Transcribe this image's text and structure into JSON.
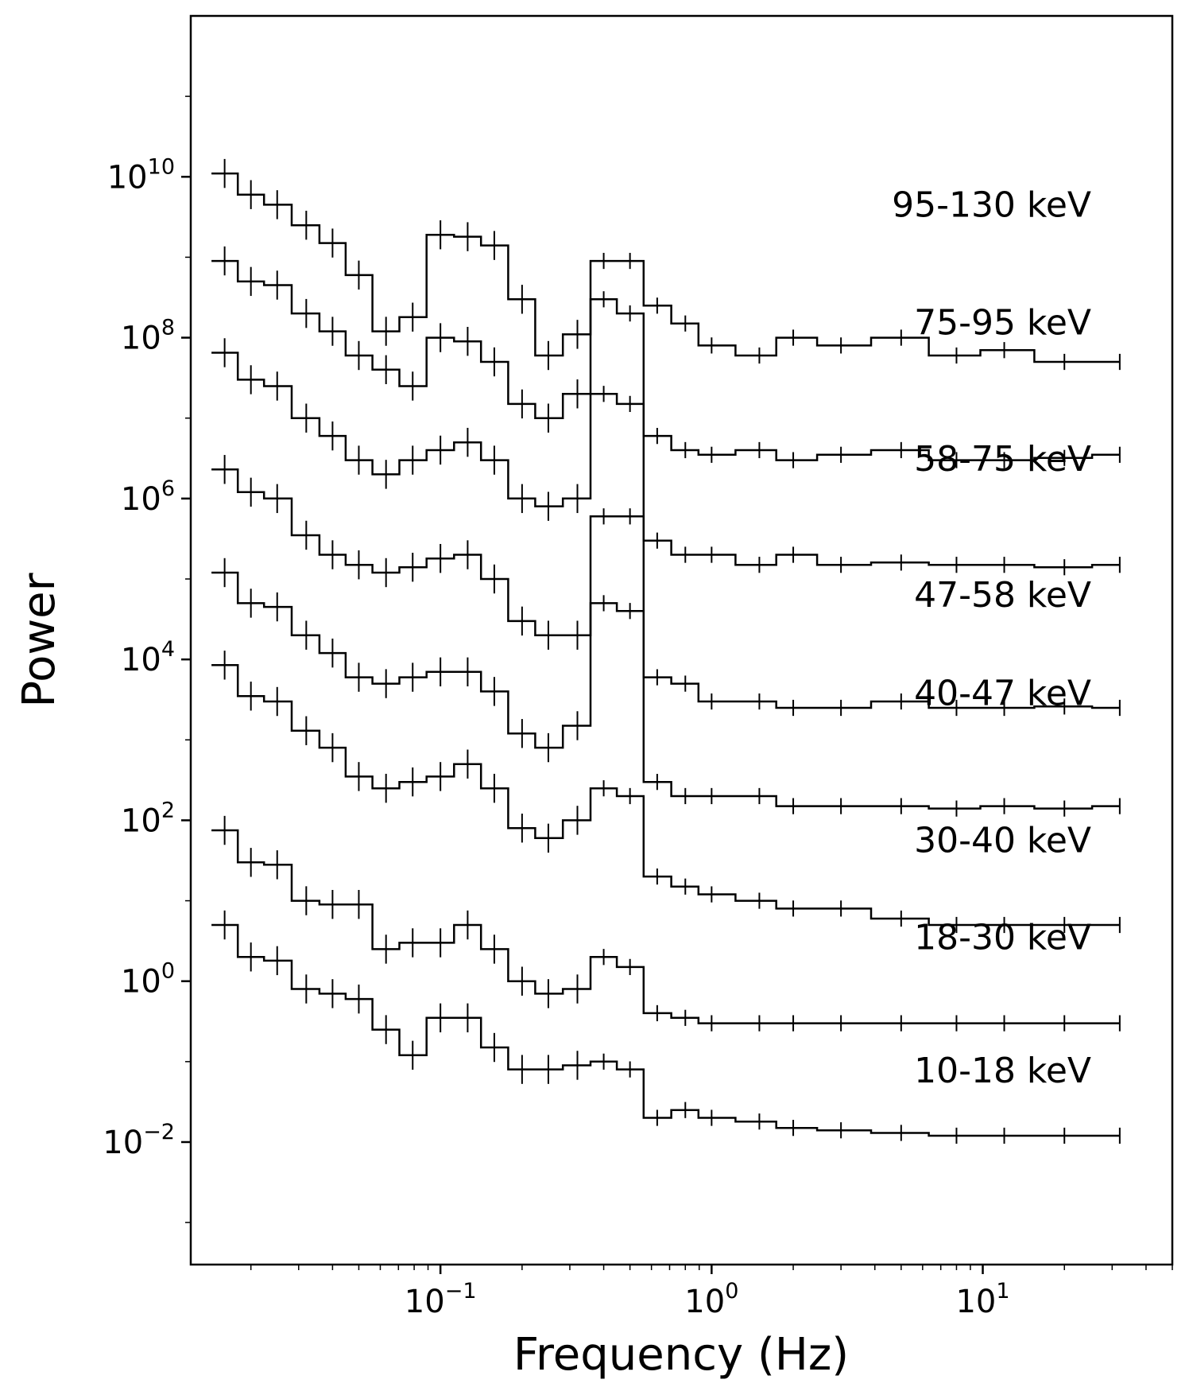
{
  "chart_data": {
    "type": "line",
    "title": "",
    "xlabel": "Frequency (Hz)",
    "ylabel": "Power",
    "xscale": "log",
    "yscale": "log",
    "xlim": [
      0.012,
      50
    ],
    "ylim": [
      0.0003,
      1000000000000.0
    ],
    "grid": false,
    "x_ticks": [
      {
        "value": 0.1,
        "base": "10",
        "exp": "−1"
      },
      {
        "value": 1,
        "base": "10",
        "exp": "0"
      },
      {
        "value": 10,
        "base": "10",
        "exp": "1"
      }
    ],
    "y_ticks": [
      {
        "value": 10000000000.0,
        "base": "10",
        "exp": "10"
      },
      {
        "value": 100000000.0,
        "base": "10",
        "exp": "8"
      },
      {
        "value": 1000000.0,
        "base": "10",
        "exp": "6"
      },
      {
        "value": 10000.0,
        "base": "10",
        "exp": "4"
      },
      {
        "value": 100.0,
        "base": "10",
        "exp": "2"
      },
      {
        "value": 1,
        "base": "10",
        "exp": "0"
      },
      {
        "value": 0.01,
        "base": "10",
        "exp": "−2"
      }
    ],
    "series": [
      {
        "name": "95-130 keV",
        "label_y": 3200000000.0,
        "x": [
          0.016,
          0.02,
          0.025,
          0.032,
          0.04,
          0.05,
          0.063,
          0.079,
          0.1,
          0.126,
          0.158,
          0.2,
          0.25,
          0.32,
          0.4,
          0.5,
          0.63,
          0.8,
          1,
          1.5,
          2,
          3,
          5,
          8,
          12,
          20,
          32
        ],
        "y": [
          11000000000.0,
          6000000000.0,
          4500000000.0,
          2500000000.0,
          1500000000.0,
          600000000.0,
          120000000.0,
          180000000.0,
          1900000000.0,
          1800000000.0,
          1400000000.0,
          300000000.0,
          60000000.0,
          110000000.0,
          900000000.0,
          900000000.0,
          250000000.0,
          150000000.0,
          80000000.0,
          60000000.0,
          100000000.0,
          80000000.0,
          100000000.0,
          60000000.0,
          70000000.0,
          50000000.0,
          50000000.0
        ]
      },
      {
        "name": "75-95 keV",
        "label_y": 110000000.0,
        "x": [
          0.016,
          0.02,
          0.025,
          0.032,
          0.04,
          0.05,
          0.063,
          0.079,
          0.1,
          0.126,
          0.158,
          0.2,
          0.25,
          0.32,
          0.4,
          0.5,
          0.63,
          0.8,
          1,
          1.5,
          2,
          3,
          5,
          8,
          12,
          20,
          32
        ],
        "y": [
          900000000.0,
          500000000.0,
          450000000.0,
          200000000.0,
          120000000.0,
          60000000.0,
          40000000.0,
          25000000.0,
          100000000.0,
          90000000.0,
          50000000.0,
          15000000.0,
          10000000.0,
          20000000.0,
          300000000.0,
          200000000.0,
          6000000.0,
          4000000.0,
          3500000.0,
          4000000.0,
          3000000.0,
          3500000.0,
          4000000.0,
          3000000.0,
          3000000.0,
          3200000.0,
          3500000.0
        ]
      },
      {
        "name": "58-75 keV",
        "label_y": 2200000.0,
        "x": [
          0.016,
          0.02,
          0.025,
          0.032,
          0.04,
          0.05,
          0.063,
          0.079,
          0.1,
          0.126,
          0.158,
          0.2,
          0.25,
          0.32,
          0.4,
          0.5,
          0.63,
          0.8,
          1,
          1.5,
          2,
          3,
          5,
          8,
          12,
          20,
          32
        ],
        "y": [
          65000000.0,
          30000000.0,
          25000000.0,
          10000000.0,
          6000000.0,
          3000000.0,
          2000000.0,
          3000000.0,
          4000000.0,
          5000000.0,
          3000000.0,
          1000000.0,
          800000.0,
          1000000.0,
          20000000.0,
          15000000.0,
          300000.0,
          200000.0,
          200000.0,
          150000.0,
          200000.0,
          150000.0,
          160000.0,
          150000.0,
          150000.0,
          140000.0,
          150000.0
        ]
      },
      {
        "name": "47-58 keV",
        "label_y": 45000.0,
        "x": [
          0.016,
          0.02,
          0.025,
          0.032,
          0.04,
          0.05,
          0.063,
          0.079,
          0.1,
          0.126,
          0.158,
          0.2,
          0.25,
          0.32,
          0.4,
          0.5,
          0.63,
          0.8,
          1,
          1.5,
          2,
          3,
          5,
          8,
          12,
          20,
          32
        ],
        "y": [
          2300000.0,
          1200000.0,
          1000000.0,
          350000.0,
          200000.0,
          150000.0,
          120000.0,
          140000.0,
          180000.0,
          200000.0,
          100000.0,
          30000.0,
          20000.0,
          20000.0,
          600000.0,
          600000.0,
          6000.0,
          5000.0,
          3000.0,
          3000.0,
          2500.0,
          2500.0,
          3000.0,
          2500.0,
          2500.0,
          2600.0,
          2500.0
        ]
      },
      {
        "name": "40-47 keV",
        "label_y": 2700.0,
        "x": [
          0.016,
          0.02,
          0.025,
          0.032,
          0.04,
          0.05,
          0.063,
          0.079,
          0.1,
          0.126,
          0.158,
          0.2,
          0.25,
          0.32,
          0.4,
          0.5,
          0.63,
          0.8,
          1,
          1.5,
          2,
          3,
          5,
          8,
          12,
          20,
          32
        ],
        "y": [
          120000.0,
          50000.0,
          45000.0,
          20000.0,
          12000.0,
          6000.0,
          5000.0,
          6000.0,
          7000.0,
          7000.0,
          4000.0,
          1200.0,
          800.0,
          1500.0,
          50000.0,
          40000.0,
          300.0,
          200.0,
          200.0,
          200.0,
          150.0,
          150.0,
          150.0,
          140.0,
          150.0,
          140.0,
          150.0
        ]
      },
      {
        "name": "30-40 keV",
        "label_y": 40,
        "x": [
          0.016,
          0.02,
          0.025,
          0.032,
          0.04,
          0.05,
          0.063,
          0.079,
          0.1,
          0.126,
          0.158,
          0.2,
          0.25,
          0.32,
          0.4,
          0.5,
          0.63,
          0.8,
          1,
          1.5,
          2,
          3,
          5,
          8,
          12,
          20,
          32
        ],
        "y": [
          8500.0,
          3500.0,
          3000.0,
          1300.0,
          800.0,
          350.0,
          250.0,
          300.0,
          350.0,
          500.0,
          250.0,
          80,
          60,
          100.0,
          250.0,
          200.0,
          20,
          15,
          12,
          10,
          8,
          8,
          6,
          5,
          5,
          5,
          5
        ]
      },
      {
        "name": "18-30 keV",
        "label_y": 2.5,
        "x": [
          0.016,
          0.02,
          0.025,
          0.032,
          0.04,
          0.05,
          0.063,
          0.079,
          0.1,
          0.126,
          0.158,
          0.2,
          0.25,
          0.32,
          0.4,
          0.5,
          0.63,
          0.8,
          1,
          1.5,
          2,
          3,
          5,
          8,
          12,
          20,
          32
        ],
        "y": [
          75,
          30,
          28,
          10,
          9,
          9,
          2.5,
          3,
          3,
          5,
          2.5,
          1,
          0.7,
          0.8,
          2,
          1.5,
          0.4,
          0.35,
          0.3,
          0.3,
          0.3,
          0.3,
          0.3,
          0.3,
          0.3,
          0.3,
          0.3
        ]
      },
      {
        "name": "10-18 keV",
        "label_y": 0.055,
        "x": [
          0.016,
          0.02,
          0.025,
          0.032,
          0.04,
          0.05,
          0.063,
          0.079,
          0.1,
          0.126,
          0.158,
          0.2,
          0.25,
          0.32,
          0.4,
          0.5,
          0.63,
          0.8,
          1,
          1.5,
          2,
          3,
          5,
          8,
          12,
          20,
          32
        ],
        "y": [
          5,
          2,
          1.8,
          0.8,
          0.7,
          0.6,
          0.25,
          0.12,
          0.35,
          0.35,
          0.15,
          0.08,
          0.08,
          0.09,
          0.1,
          0.08,
          0.02,
          0.025,
          0.02,
          0.018,
          0.015,
          0.014,
          0.013,
          0.012,
          0.012,
          0.012,
          0.012
        ]
      }
    ]
  }
}
